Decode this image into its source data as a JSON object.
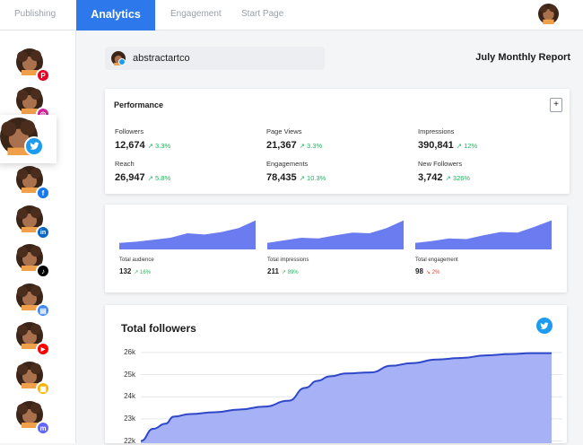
{
  "nav": {
    "items": [
      {
        "label": "Publishing",
        "active": false
      },
      {
        "label": "Analytics",
        "active": true
      },
      {
        "label": "Engagement",
        "active": false
      },
      {
        "label": "Start Page",
        "active": false
      }
    ]
  },
  "sidebar": {
    "networks": [
      {
        "name": "pinterest",
        "icon": "pinterest-icon",
        "color": "#e60023",
        "glyph": "P"
      },
      {
        "name": "instagram",
        "icon": "instagram-icon",
        "color": "#d6249f",
        "glyph": "◎"
      },
      {
        "name": "twitter",
        "icon": "twitter-icon",
        "color": "#1d9bf0",
        "active": true
      },
      {
        "name": "facebook",
        "icon": "facebook-icon",
        "color": "#1877f2",
        "glyph": "f"
      },
      {
        "name": "linkedin",
        "icon": "linkedin-icon",
        "color": "#0a66c2",
        "glyph": "in"
      },
      {
        "name": "tiktok",
        "icon": "tiktok-icon",
        "color": "#000000",
        "glyph": "♪"
      },
      {
        "name": "google-business",
        "icon": "store-icon",
        "color": "#4285f4",
        "glyph": "▤"
      },
      {
        "name": "youtube",
        "icon": "youtube-icon",
        "color": "#ff0000",
        "glyph": "▶"
      },
      {
        "name": "startpage",
        "icon": "page-icon",
        "color": "#f4b400",
        "glyph": "▦"
      },
      {
        "name": "mastodon",
        "icon": "mastodon-icon",
        "color": "#6364ff",
        "glyph": "m"
      }
    ]
  },
  "account": {
    "handle": "abstractartco"
  },
  "report": {
    "title": "July Monthly Report"
  },
  "performance": {
    "title": "Performance",
    "add_label": "+",
    "metrics": [
      {
        "label": "Followers",
        "value": "12,674",
        "delta": "↗ 3.3%"
      },
      {
        "label": "Page Views",
        "value": "21,367",
        "delta": "↗ 3.3%"
      },
      {
        "label": "Impressions",
        "value": "390,841",
        "delta": "↗ 12%"
      },
      {
        "label": "Reach",
        "value": "26,947",
        "delta": "↗ 5.8%"
      },
      {
        "label": "Engagements",
        "value": "78,435",
        "delta": "↗ 10.3%"
      },
      {
        "label": "New Followers",
        "value": "3,742",
        "delta": "↗ 326%"
      }
    ]
  },
  "minis": [
    {
      "label": "Total audience",
      "value": "132",
      "delta": "↗ 16%",
      "trend": "up",
      "points": [
        12,
        12.4,
        13,
        13.6,
        15,
        14.6,
        15.4,
        16.6,
        19
      ]
    },
    {
      "label": "Total impressions",
      "value": "211",
      "delta": "↗ 89%",
      "trend": "up",
      "points": [
        12,
        12.8,
        13.6,
        13.4,
        14.4,
        15.2,
        15,
        16.6,
        19
      ]
    },
    {
      "label": "Total engagement",
      "value": "98",
      "delta": "↘ 2%",
      "trend": "down",
      "points": [
        12,
        12.6,
        13.4,
        13.2,
        14.4,
        15.4,
        15.2,
        17,
        19
      ]
    }
  ],
  "accent_color": "#6b7cf0",
  "chart_data": {
    "type": "area",
    "title": "Total followers",
    "yticks": [
      "26k",
      "25k",
      "24k",
      "23k",
      "22k"
    ],
    "ylim": [
      21.9,
      26.4
    ],
    "x": [
      0,
      3,
      6,
      8,
      12,
      18,
      24,
      30,
      36,
      40,
      43,
      46,
      50,
      56,
      61,
      66,
      72,
      78,
      84,
      90,
      95,
      100
    ],
    "values": [
      22.0,
      22.55,
      22.78,
      23.1,
      23.22,
      23.3,
      23.42,
      23.55,
      23.82,
      24.4,
      24.72,
      24.92,
      25.05,
      25.1,
      25.4,
      25.52,
      25.68,
      25.75,
      25.87,
      25.93,
      25.97,
      25.97
    ],
    "grid": true
  }
}
